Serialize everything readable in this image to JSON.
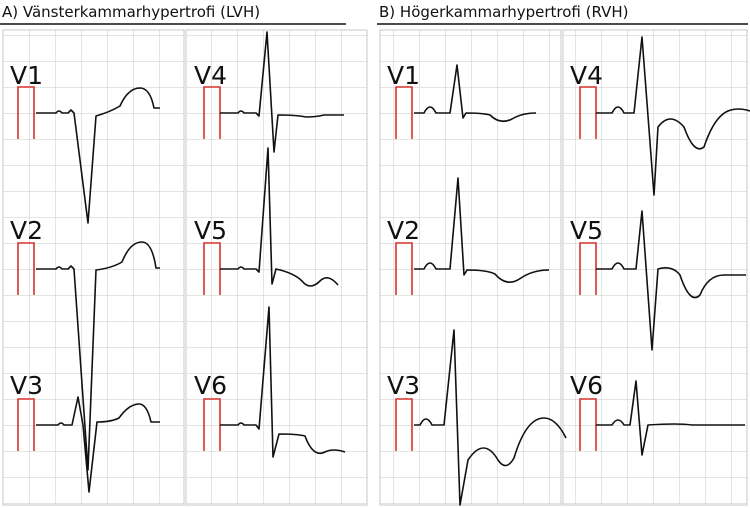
{
  "panels": [
    {
      "title": "A) Vänsterkammarhypertrofi (LVH)",
      "leads": [
        "V1",
        "V2",
        "V3",
        "V4",
        "V5",
        "V6"
      ]
    },
    {
      "title": "B) Högerkammarhypertrofi (RVH)",
      "leads": [
        "V1",
        "V2",
        "V3",
        "V4",
        "V5",
        "V6"
      ]
    }
  ]
}
